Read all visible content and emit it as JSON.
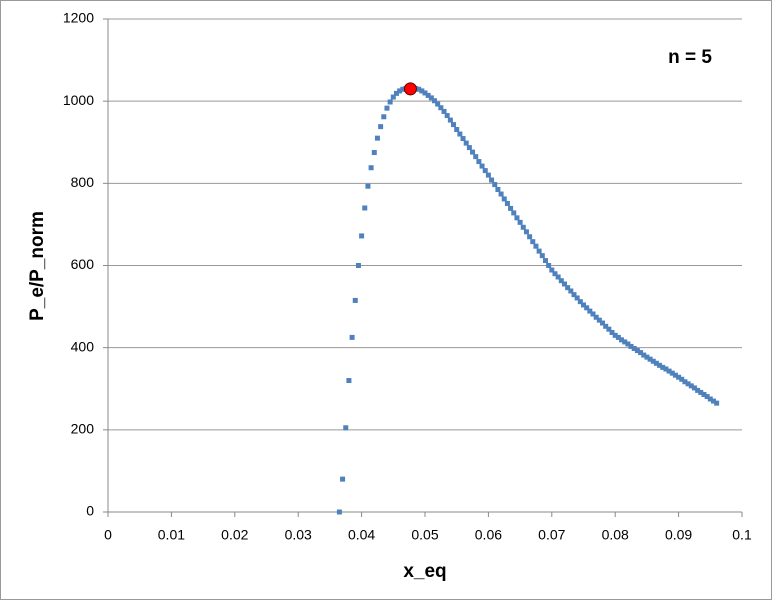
{
  "chart_data": {
    "type": "scatter",
    "x_label": "x_eq",
    "y_label": "P_e/P_norm",
    "annotation": "n = 5",
    "xlim": [
      0,
      0.1
    ],
    "xticks": [
      0,
      0.01,
      0.02,
      0.03,
      0.04,
      0.05,
      0.06,
      0.07,
      0.08,
      0.09,
      0.1
    ],
    "ylim": [
      0,
      1200
    ],
    "yticks": [
      0,
      200,
      400,
      600,
      800,
      1000,
      1200
    ],
    "grid": true,
    "series": [
      {
        "color": "#4f81bd",
        "marker": "square",
        "x": [
          0.0365,
          0.037,
          0.0375,
          0.038,
          0.0385,
          0.039,
          0.0395,
          0.04,
          0.0405,
          0.041,
          0.0415,
          0.042,
          0.0425,
          0.043,
          0.0435,
          0.044,
          0.0445,
          0.045,
          0.0455,
          0.046,
          0.0465,
          0.047,
          0.0475,
          0.048,
          0.0485,
          0.049,
          0.0495,
          0.05,
          0.0505,
          0.051,
          0.0515,
          0.052,
          0.0525,
          0.053,
          0.0535,
          0.054,
          0.0545,
          0.055,
          0.0555,
          0.056,
          0.0565,
          0.057,
          0.0575,
          0.058,
          0.0585,
          0.059,
          0.0595,
          0.06,
          0.0605,
          0.061,
          0.0615,
          0.062,
          0.0625,
          0.063,
          0.0635,
          0.064,
          0.0645,
          0.065,
          0.0655,
          0.066,
          0.0665,
          0.067,
          0.0675,
          0.068,
          0.0685,
          0.069,
          0.0695,
          0.07,
          0.0705,
          0.071,
          0.0715,
          0.072,
          0.0725,
          0.073,
          0.0735,
          0.074,
          0.0745,
          0.075,
          0.0755,
          0.076,
          0.0765,
          0.077,
          0.0775,
          0.078,
          0.0785,
          0.079,
          0.0795,
          0.08,
          0.0805,
          0.081,
          0.0815,
          0.082,
          0.0825,
          0.083,
          0.0835,
          0.084,
          0.0845,
          0.085,
          0.0855,
          0.086,
          0.0865,
          0.087,
          0.0875,
          0.088,
          0.0885,
          0.089,
          0.0895,
          0.09,
          0.0905,
          0.091,
          0.0915,
          0.092,
          0.0925,
          0.093,
          0.0935,
          0.094,
          0.0945,
          0.095,
          0.0955,
          0.096
        ],
        "values": [
          0,
          80,
          205,
          320,
          425,
          515,
          600,
          672,
          740,
          793,
          838,
          875,
          910,
          938,
          962,
          983,
          998,
          1010,
          1019,
          1025,
          1029,
          1031,
          1032,
          1032,
          1031,
          1029,
          1025,
          1020,
          1014,
          1008,
          1001,
          993,
          984,
          975,
          965,
          954,
          943,
          931,
          920,
          909,
          898,
          887,
          876,
          865,
          853,
          842,
          831,
          820,
          808,
          797,
          785,
          774,
          762,
          751,
          739,
          728,
          716,
          705,
          693,
          682,
          670,
          658,
          647,
          635,
          624,
          612,
          600,
          589,
          580,
          572,
          563,
          555,
          546,
          538,
          529,
          521,
          512,
          504,
          497,
          489,
          482,
          474,
          467,
          460,
          452,
          445,
          437,
          430,
          425,
          419,
          414,
          409,
          403,
          398,
          393,
          388,
          382,
          377,
          372,
          367,
          362,
          357,
          352,
          348,
          343,
          338,
          333,
          328,
          323,
          317,
          312,
          307,
          302,
          296,
          291,
          286,
          281,
          275,
          270,
          265
        ]
      },
      {
        "color": "#ff0000",
        "marker": "circle",
        "x": [
          0.0477
        ],
        "values": [
          1030
        ]
      }
    ]
  }
}
